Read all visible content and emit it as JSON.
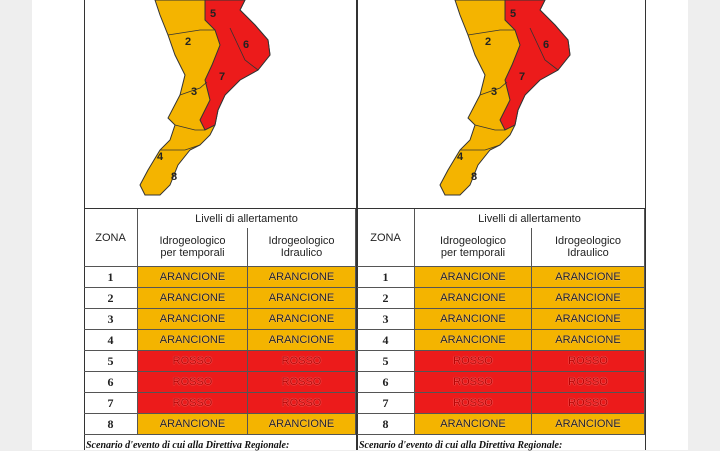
{
  "panels": [
    {
      "map_labels": [
        "5",
        "2",
        "6",
        "3",
        "7",
        "4",
        "8"
      ],
      "table": {
        "header": {
          "zone": "ZONA",
          "levels": "Livelli di allertamento",
          "col1": "Idrogeologico per temporali",
          "col2": "Idrogeologico Idraulico"
        },
        "rows": [
          {
            "zone": "1",
            "cells": [
              "ARANCIONE",
              "ARANCIONE"
            ],
            "color": "#f4b400",
            "text_color": "#222222"
          },
          {
            "zone": "2",
            "cells": [
              "ARANCIONE",
              "ARANCIONE"
            ],
            "color": "#f4b400",
            "text_color": "#222222"
          },
          {
            "zone": "3",
            "cells": [
              "ARANCIONE",
              "ARANCIONE"
            ],
            "color": "#f4b400",
            "text_color": "#222222"
          },
          {
            "zone": "4",
            "cells": [
              "ARANCIONE",
              "ARANCIONE"
            ],
            "color": "#f4b400",
            "text_color": "#222222"
          },
          {
            "zone": "5",
            "cells": [
              "ROSSO",
              "ROSSO"
            ],
            "color": "#ec1b1b",
            "text_color": "#b80000"
          },
          {
            "zone": "6",
            "cells": [
              "ROSSO",
              "ROSSO"
            ],
            "color": "#ec1b1b",
            "text_color": "#b80000"
          },
          {
            "zone": "7",
            "cells": [
              "ROSSO",
              "ROSSO"
            ],
            "color": "#ec1b1b",
            "text_color": "#b80000"
          },
          {
            "zone": "8",
            "cells": [
              "ARANCIONE",
              "ARANCIONE"
            ],
            "color": "#f4b400",
            "text_color": "#222222"
          }
        ]
      },
      "footer": "Scenario d'evento di cui alla Direttiva Regionale:"
    },
    {
      "map_labels": [
        "5",
        "2",
        "6",
        "3",
        "7",
        "4",
        "8"
      ],
      "table": {
        "header": {
          "zone": "ZONA",
          "levels": "Livelli di allertamento",
          "col1": "Idrogeologico per temporali",
          "col2": "Idrogeologico Idraulico"
        },
        "rows": [
          {
            "zone": "1",
            "cells": [
              "ARANCIONE",
              "ARANCIONE"
            ],
            "color": "#f4b400",
            "text_color": "#222222"
          },
          {
            "zone": "2",
            "cells": [
              "ARANCIONE",
              "ARANCIONE"
            ],
            "color": "#f4b400",
            "text_color": "#222222"
          },
          {
            "zone": "3",
            "cells": [
              "ARANCIONE",
              "ARANCIONE"
            ],
            "color": "#f4b400",
            "text_color": "#222222"
          },
          {
            "zone": "4",
            "cells": [
              "ARANCIONE",
              "ARANCIONE"
            ],
            "color": "#f4b400",
            "text_color": "#222222"
          },
          {
            "zone": "5",
            "cells": [
              "ROSSO",
              "ROSSO"
            ],
            "color": "#ec1b1b",
            "text_color": "#b80000"
          },
          {
            "zone": "6",
            "cells": [
              "ROSSO",
              "ROSSO"
            ],
            "color": "#ec1b1b",
            "text_color": "#b80000"
          },
          {
            "zone": "7",
            "cells": [
              "ROSSO",
              "ROSSO"
            ],
            "color": "#ec1b1b",
            "text_color": "#b80000"
          },
          {
            "zone": "8",
            "cells": [
              "ARANCIONE",
              "ARANCIONE"
            ],
            "color": "#f4b400",
            "text_color": "#222222"
          }
        ]
      },
      "footer": "Scenario d'evento di cui alla Direttiva Regionale:"
    }
  ]
}
